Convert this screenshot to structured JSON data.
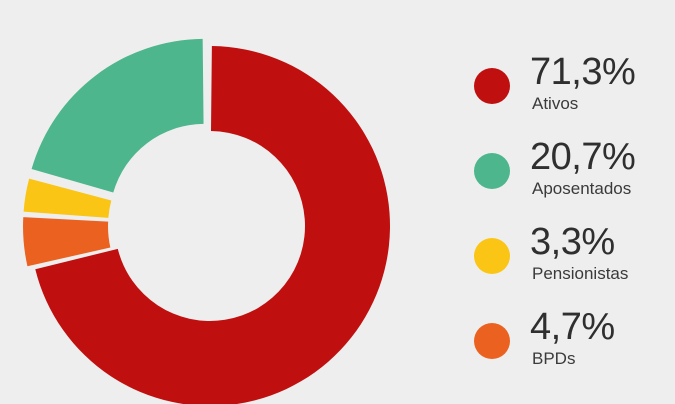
{
  "chart_data": {
    "type": "pie",
    "categories": [
      "Ativos",
      "Aposentados",
      "Pensionistas",
      "BPDs"
    ],
    "values": [
      71.3,
      20.7,
      3.3,
      4.7
    ],
    "value_labels": [
      "71,3%",
      "20,7%",
      "3,3%",
      "4,7%"
    ],
    "colors": [
      "#c00f0f",
      "#4db68c",
      "#fac515",
      "#eb6120"
    ],
    "donut": true,
    "exploded": [
      "Aposentados",
      "Pensionistas",
      "BPDs"
    ],
    "legend_position": "right"
  }
}
